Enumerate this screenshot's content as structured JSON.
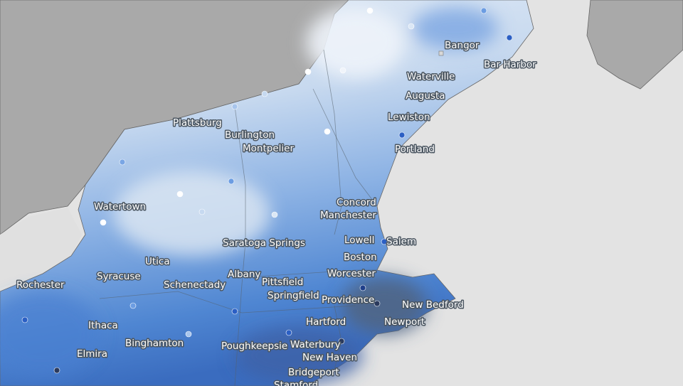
{
  "cities": [
    "Bangor",
    "Bar Harbor",
    "Waterville",
    "Augusta",
    "Lewiston",
    "Portland",
    "Plattsburg",
    "Burlington",
    "Montpelier",
    "Watertown",
    "Concord",
    "Manchester",
    "Lowell",
    "Salem",
    "Boston",
    "Saratoga Springs",
    "Utica",
    "Syracuse",
    "Albany",
    "Pittsfield",
    "Worcester",
    "Rochester",
    "Schenectady",
    "Springfield",
    "Providence",
    "New Bedford",
    "Ithaca",
    "Hartford",
    "Newport",
    "Binghamton",
    "Poughkeepsie",
    "Waterbury",
    "Elmira",
    "New Haven",
    "Bridgeport",
    "Stamford"
  ]
}
